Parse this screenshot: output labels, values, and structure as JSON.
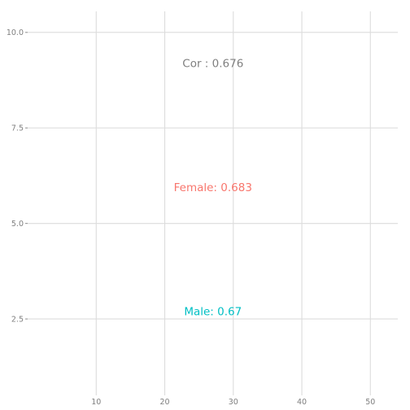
{
  "chart_data": {
    "type": "scatter",
    "title": "",
    "xlabel": "",
    "ylabel": "",
    "xlim": [
      0,
      54
    ],
    "ylim": [
      0.5,
      10.55
    ],
    "x_ticks": [
      10,
      20,
      30,
      40,
      50
    ],
    "x_tick_labels": [
      "10",
      "20",
      "30",
      "40",
      "50"
    ],
    "y_ticks": [
      2.5,
      5.0,
      7.5,
      10.0
    ],
    "y_tick_labels": [
      "2.5",
      "5.0",
      "7.5",
      "10.0"
    ],
    "grid": true,
    "legend": "none",
    "annotations": [
      {
        "text": "Cor : 0.676",
        "x": 30,
        "y": 9.2,
        "color": "#7f7f7f"
      },
      {
        "text": "Female: 0.683",
        "x": 30,
        "y": 5.95,
        "color": "#f8766d"
      },
      {
        "text": "Male: 0.67",
        "x": 30,
        "y": 2.7,
        "color": "#00bfc4"
      }
    ]
  }
}
